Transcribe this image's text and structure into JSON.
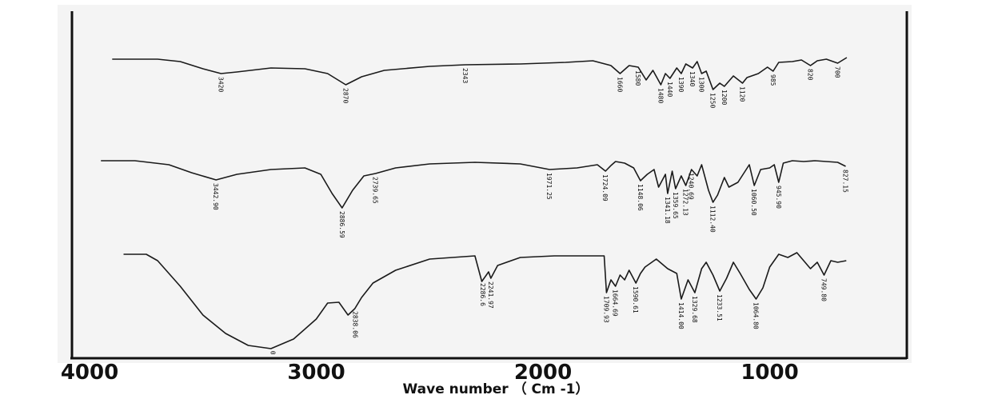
{
  "chart_data": {
    "type": "line",
    "title": "",
    "xlabel": "Wave number （ Cm -1）",
    "ylabel": "",
    "xlim": [
      4000,
      650
    ],
    "x_ticks": [
      4000,
      3000,
      2000,
      1000
    ],
    "x_tick_labels": [
      "4000",
      "3000",
      "2000",
      "1000"
    ],
    "grid": false,
    "series": [
      {
        "points": [
          [
            3900,
            2
          ],
          [
            3700,
            2
          ],
          [
            3600,
            5
          ],
          [
            3500,
            14
          ],
          [
            3420,
            20
          ],
          [
            3350,
            18
          ],
          [
            3200,
            13
          ],
          [
            3050,
            14
          ],
          [
            2950,
            20
          ],
          [
            2870,
            34
          ],
          [
            2800,
            24
          ],
          [
            2700,
            16
          ],
          [
            2500,
            11
          ],
          [
            2343,
            9
          ],
          [
            2100,
            8
          ],
          [
            1900,
            6
          ],
          [
            1780,
            4
          ],
          [
            1700,
            10
          ],
          [
            1660,
            20
          ],
          [
            1620,
            10
          ],
          [
            1580,
            12
          ],
          [
            1545,
            28
          ],
          [
            1515,
            16
          ],
          [
            1480,
            34
          ],
          [
            1460,
            20
          ],
          [
            1440,
            26
          ],
          [
            1410,
            13
          ],
          [
            1390,
            20
          ],
          [
            1370,
            8
          ],
          [
            1340,
            13
          ],
          [
            1320,
            5
          ],
          [
            1300,
            20
          ],
          [
            1280,
            17
          ],
          [
            1250,
            40
          ],
          [
            1220,
            32
          ],
          [
            1200,
            36
          ],
          [
            1160,
            23
          ],
          [
            1120,
            32
          ],
          [
            1100,
            25
          ],
          [
            1050,
            20
          ],
          [
            1010,
            12
          ],
          [
            985,
            17
          ],
          [
            960,
            6
          ],
          [
            900,
            5
          ],
          [
            860,
            3
          ],
          [
            820,
            10
          ],
          [
            790,
            4
          ],
          [
            750,
            2
          ],
          [
            700,
            7
          ],
          [
            660,
            0
          ]
        ],
        "peak_labels": [
          {
            "x": 3420,
            "text": "3420"
          },
          {
            "x": 2870,
            "text": "2870"
          },
          {
            "x": 2343,
            "text": "2343"
          },
          {
            "x": 1660,
            "text": "1660"
          },
          {
            "x": 1580,
            "text": "1580"
          },
          {
            "x": 1480,
            "text": "1480"
          },
          {
            "x": 1440,
            "text": "1440"
          },
          {
            "x": 1390,
            "text": "1390"
          },
          {
            "x": 1340,
            "text": "1340"
          },
          {
            "x": 1300,
            "text": "1300"
          },
          {
            "x": 1250,
            "text": "1250"
          },
          {
            "x": 1200,
            "text": "1200"
          },
          {
            "x": 1120,
            "text": "1120"
          },
          {
            "x": 985,
            "text": "985"
          },
          {
            "x": 820,
            "text": "820"
          },
          {
            "x": 700,
            "text": "700"
          }
        ]
      },
      {
        "points": [
          [
            3950,
            3
          ],
          [
            3800,
            3
          ],
          [
            3650,
            8
          ],
          [
            3550,
            18
          ],
          [
            3442,
            27
          ],
          [
            3350,
            20
          ],
          [
            3200,
            14
          ],
          [
            3050,
            12
          ],
          [
            2980,
            20
          ],
          [
            2930,
            44
          ],
          [
            2886,
            62
          ],
          [
            2840,
            40
          ],
          [
            2790,
            22
          ],
          [
            2739,
            19
          ],
          [
            2650,
            12
          ],
          [
            2500,
            7
          ],
          [
            2300,
            5
          ],
          [
            2100,
            7
          ],
          [
            1971,
            14
          ],
          [
            1850,
            12
          ],
          [
            1760,
            8
          ],
          [
            1724,
            16
          ],
          [
            1700,
            9
          ],
          [
            1680,
            4
          ],
          [
            1640,
            6
          ],
          [
            1600,
            12
          ],
          [
            1570,
            28
          ],
          [
            1540,
            20
          ],
          [
            1510,
            14
          ],
          [
            1490,
            36
          ],
          [
            1460,
            20
          ],
          [
            1450,
            44
          ],
          [
            1430,
            16
          ],
          [
            1415,
            38
          ],
          [
            1390,
            22
          ],
          [
            1370,
            34
          ],
          [
            1345,
            14
          ],
          [
            1320,
            22
          ],
          [
            1300,
            8
          ],
          [
            1270,
            40
          ],
          [
            1250,
            55
          ],
          [
            1230,
            46
          ],
          [
            1200,
            24
          ],
          [
            1180,
            36
          ],
          [
            1140,
            30
          ],
          [
            1090,
            8
          ],
          [
            1068,
            34
          ],
          [
            1040,
            14
          ],
          [
            1000,
            12
          ],
          [
            980,
            8
          ],
          [
            960,
            30
          ],
          [
            940,
            6
          ],
          [
            900,
            3
          ],
          [
            850,
            4
          ],
          [
            800,
            3
          ],
          [
            700,
            5
          ],
          [
            665,
            10
          ]
        ],
        "peak_labels": [
          {
            "x": 3442,
            "text": "3442.90"
          },
          {
            "x": 2886,
            "text": "2886.59"
          },
          {
            "x": 2739,
            "text": "2739.65"
          },
          {
            "x": 1971,
            "text": "1971.25"
          },
          {
            "x": 1724,
            "text": "1724.09"
          },
          {
            "x": 1570,
            "text": "1148.06"
          },
          {
            "x": 1450,
            "text": "1341.18"
          },
          {
            "x": 1415,
            "text": "1359.65"
          },
          {
            "x": 1370,
            "text": "1272.13"
          },
          {
            "x": 1345,
            "text": "1240.69"
          },
          {
            "x": 1250,
            "text": "1112.40"
          },
          {
            "x": 1068,
            "text": "1060.50"
          },
          {
            "x": 960,
            "text": "945.90"
          },
          {
            "x": 665,
            "text": "827.15"
          }
        ]
      },
      {
        "points": [
          [
            3850,
            4
          ],
          [
            3750,
            4
          ],
          [
            3700,
            12
          ],
          [
            3600,
            44
          ],
          [
            3500,
            80
          ],
          [
            3400,
            103
          ],
          [
            3300,
            118
          ],
          [
            3200,
            122
          ],
          [
            3100,
            110
          ],
          [
            3000,
            85
          ],
          [
            2950,
            65
          ],
          [
            2900,
            64
          ],
          [
            2860,
            80
          ],
          [
            2830,
            72
          ],
          [
            2800,
            58
          ],
          [
            2750,
            40
          ],
          [
            2650,
            24
          ],
          [
            2500,
            10
          ],
          [
            2350,
            7
          ],
          [
            2300,
            6
          ],
          [
            2270,
            38
          ],
          [
            2240,
            26
          ],
          [
            2230,
            34
          ],
          [
            2200,
            18
          ],
          [
            2100,
            8
          ],
          [
            1950,
            6
          ],
          [
            1800,
            6
          ],
          [
            1730,
            6
          ],
          [
            1720,
            52
          ],
          [
            1700,
            36
          ],
          [
            1680,
            44
          ],
          [
            1660,
            30
          ],
          [
            1640,
            36
          ],
          [
            1620,
            24
          ],
          [
            1590,
            40
          ],
          [
            1570,
            28
          ],
          [
            1550,
            20
          ],
          [
            1500,
            10
          ],
          [
            1450,
            22
          ],
          [
            1410,
            28
          ],
          [
            1390,
            60
          ],
          [
            1360,
            36
          ],
          [
            1330,
            52
          ],
          [
            1300,
            22
          ],
          [
            1280,
            14
          ],
          [
            1250,
            30
          ],
          [
            1220,
            50
          ],
          [
            1190,
            34
          ],
          [
            1160,
            14
          ],
          [
            1130,
            28
          ],
          [
            1090,
            48
          ],
          [
            1060,
            60
          ],
          [
            1030,
            46
          ],
          [
            1000,
            20
          ],
          [
            960,
            4
          ],
          [
            920,
            8
          ],
          [
            880,
            2
          ],
          [
            850,
            12
          ],
          [
            820,
            22
          ],
          [
            790,
            14
          ],
          [
            760,
            30
          ],
          [
            730,
            12
          ],
          [
            700,
            14
          ],
          [
            662,
            12
          ]
        ],
        "peak_labels": [
          {
            "x": 3190,
            "text": "0"
          },
          {
            "x": 2828,
            "text": "2838.06"
          },
          {
            "x": 2265,
            "text": "2286.6"
          },
          {
            "x": 2230,
            "text": "2241.97"
          },
          {
            "x": 1720,
            "text": "1709.93"
          },
          {
            "x": 1680,
            "text": "1664.69"
          },
          {
            "x": 1590,
            "text": "1590.61"
          },
          {
            "x": 1390,
            "text": "1414.00"
          },
          {
            "x": 1330,
            "text": "1329.68"
          },
          {
            "x": 1220,
            "text": "1233.51"
          },
          {
            "x": 1060,
            "text": "1064.80"
          },
          {
            "x": 760,
            "text": "749.80"
          }
        ]
      }
    ]
  }
}
